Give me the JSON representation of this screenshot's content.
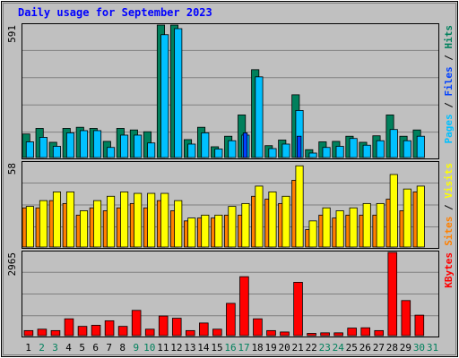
{
  "title": "Daily usage for September 2023",
  "colors": {
    "background": "#c0c0c0",
    "plot": "#c0c0c0",
    "title": "#0000ff",
    "hits": "#00805c",
    "files": "#00c0ff",
    "pages": "#0040ff",
    "visits": "#ff8000",
    "sites": "#ffff00",
    "kbytes": "#ff0000",
    "weekend": "#00805c",
    "weekday": "#000000"
  },
  "chart_data": [
    {
      "type": "bar",
      "panel": "hits-files-pages",
      "ymax_label": "591",
      "ylim": [
        0,
        591
      ],
      "right_legend": [
        {
          "text": "Pages",
          "color": "#00c0ff"
        },
        {
          "text": " / ",
          "color": "#000000"
        },
        {
          "text": "Files",
          "color": "#0040ff"
        },
        {
          "text": " / ",
          "color": "#000000"
        },
        {
          "text": "Hits",
          "color": "#00805c"
        }
      ],
      "categories": [
        "1",
        "2",
        "3",
        "4",
        "5",
        "6",
        "7",
        "8",
        "9",
        "10",
        "11",
        "12",
        "13",
        "14",
        "15",
        "16",
        "17",
        "18",
        "19",
        "20",
        "21",
        "22",
        "23",
        "24",
        "25",
        "26",
        "27",
        "28",
        "29",
        "30",
        "31"
      ],
      "series": [
        {
          "name": "Hits",
          "values": [
            105,
            130,
            68,
            130,
            135,
            130,
            72,
            130,
            123,
            115,
            591,
            591,
            80,
            135,
            48,
            95,
            190,
            392,
            53,
            78,
            280,
            35,
            70,
            72,
            95,
            68,
            97,
            190,
            95,
            123,
            0
          ]
        },
        {
          "name": "Files",
          "values": [
            70,
            90,
            50,
            110,
            120,
            120,
            45,
            100,
            100,
            65,
            548,
            575,
            60,
            110,
            38,
            75,
            100,
            360,
            40,
            60,
            210,
            20,
            45,
            50,
            85,
            55,
            75,
            125,
            75,
            95,
            0
          ]
        },
        {
          "name": "Pages",
          "values": [
            0,
            0,
            0,
            0,
            0,
            0,
            0,
            0,
            0,
            0,
            0,
            0,
            0,
            0,
            0,
            0,
            110,
            0,
            0,
            0,
            95,
            0,
            0,
            0,
            0,
            0,
            0,
            0,
            0,
            0,
            0
          ]
        }
      ]
    },
    {
      "type": "bar",
      "panel": "visits-sites",
      "ymax_label": "58",
      "ylim": [
        0,
        58
      ],
      "right_legend": [
        {
          "text": "Sites",
          "color": "#ff8000"
        },
        {
          "text": " / ",
          "color": "#000000"
        },
        {
          "text": "Visits",
          "color": "#ffff00"
        }
      ],
      "categories": [
        "1",
        "2",
        "3",
        "4",
        "5",
        "6",
        "7",
        "8",
        "9",
        "10",
        "11",
        "12",
        "13",
        "14",
        "15",
        "16",
        "17",
        "18",
        "19",
        "20",
        "21",
        "22",
        "23",
        "24",
        "25",
        "26",
        "27",
        "28",
        "29",
        "30",
        "31"
      ],
      "series": [
        {
          "name": "Visits",
          "values": [
            27,
            27,
            32,
            30,
            22,
            27,
            25,
            27,
            30,
            27,
            32,
            25,
            18,
            20,
            20,
            22,
            22,
            35,
            33,
            30,
            46,
            12,
            22,
            20,
            22,
            22,
            22,
            33,
            25,
            38,
            0
          ]
        },
        {
          "name": "Sites",
          "values": [
            28,
            32,
            38,
            38,
            25,
            32,
            35,
            38,
            37,
            37,
            37,
            32,
            20,
            22,
            22,
            28,
            30,
            42,
            38,
            35,
            56,
            18,
            27,
            25,
            27,
            30,
            30,
            50,
            40,
            42,
            0
          ]
        }
      ]
    },
    {
      "type": "bar",
      "panel": "kbytes",
      "ymax_label": "2965",
      "ylim": [
        0,
        2965
      ],
      "right_legend": [
        {
          "text": "KBytes",
          "color": "#ff0000"
        }
      ],
      "categories": [
        "1",
        "2",
        "3",
        "4",
        "5",
        "6",
        "7",
        "8",
        "9",
        "10",
        "11",
        "12",
        "13",
        "14",
        "15",
        "16",
        "17",
        "18",
        "19",
        "20",
        "21",
        "22",
        "23",
        "24",
        "25",
        "26",
        "27",
        "28",
        "29",
        "30",
        "31"
      ],
      "series": [
        {
          "name": "KBytes",
          "values": [
            180,
            230,
            180,
            600,
            330,
            370,
            530,
            330,
            900,
            230,
            700,
            620,
            180,
            450,
            230,
            1150,
            2100,
            600,
            180,
            130,
            1900,
            80,
            100,
            100,
            270,
            280,
            180,
            2965,
            1250,
            730,
            0
          ]
        }
      ]
    }
  ],
  "x_axis": {
    "labels": [
      "1",
      "2",
      "3",
      "4",
      "5",
      "6",
      "7",
      "8",
      "9",
      "10",
      "11",
      "12",
      "13",
      "14",
      "15",
      "16",
      "17",
      "18",
      "19",
      "20",
      "21",
      "22",
      "23",
      "24",
      "25",
      "26",
      "27",
      "28",
      "29",
      "30",
      "31"
    ],
    "weekend": [
      2,
      3,
      9,
      10,
      16,
      17,
      23,
      24,
      30,
      31
    ]
  }
}
